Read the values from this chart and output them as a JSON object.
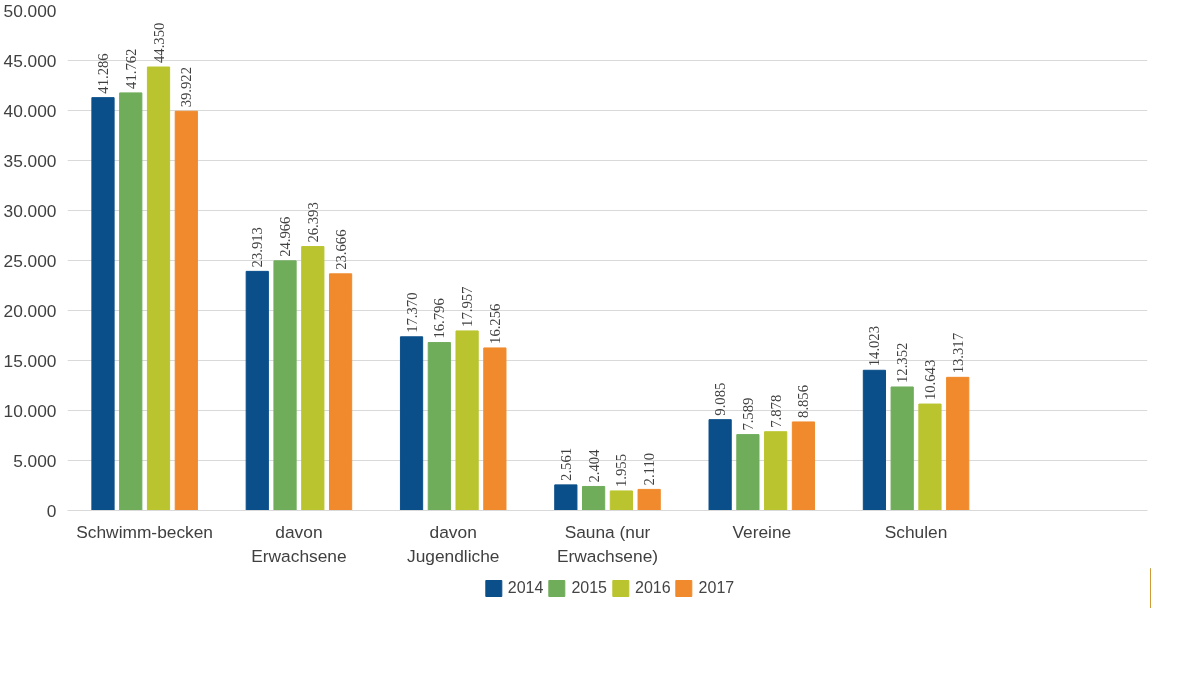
{
  "chart_data": {
    "type": "bar",
    "categories": [
      "Schwimm-becken",
      "davon Erwachsene",
      "davon Jugendliche",
      "Sauna (nur Erwachsene)",
      "Vereine",
      "Schulen",
      null
    ],
    "series": [
      {
        "name": "2014",
        "color": "#0b4f8a",
        "values": [
          41286,
          23913,
          17370,
          2561,
          9085,
          14023,
          null
        ],
        "value_labels": [
          "41.286",
          "23.913",
          "17.370",
          "2.561",
          "9.085",
          "14.023",
          null
        ]
      },
      {
        "name": "2015",
        "color": "#70ad5b",
        "values": [
          41762,
          24966,
          16796,
          2404,
          7589,
          12352,
          null
        ],
        "value_labels": [
          "41.762",
          "24.966",
          "16.796",
          "2.404",
          "7.589",
          "12.352",
          null
        ]
      },
      {
        "name": "2016",
        "color": "#bac42e",
        "values": [
          44350,
          26393,
          17957,
          1955,
          7878,
          10643,
          null
        ],
        "value_labels": [
          "44.350",
          "26.393",
          "17.957",
          "1.955",
          "7.878",
          "10.643",
          null
        ]
      },
      {
        "name": "2017",
        "color": "#f08a2c",
        "values": [
          39922,
          23666,
          16256,
          2110,
          8856,
          13317,
          null
        ],
        "value_labels": [
          "39.922",
          "23.666",
          "16.256",
          "2.110",
          "8.856",
          "13.317",
          null
        ]
      }
    ],
    "ylim": [
      0,
      50000
    ],
    "yticks": [
      {
        "value": 0,
        "label": "0"
      },
      {
        "value": 5000,
        "label": "5.000"
      },
      {
        "value": 10000,
        "label": "10.000"
      },
      {
        "value": 15000,
        "label": "15.000"
      },
      {
        "value": 20000,
        "label": "20.000"
      },
      {
        "value": 25000,
        "label": "25.000"
      },
      {
        "value": 30000,
        "label": "30.000"
      },
      {
        "value": 35000,
        "label": "35.000"
      },
      {
        "value": 40000,
        "label": "40.000"
      },
      {
        "value": 45000,
        "label": "45.000"
      },
      {
        "value": 50000,
        "label": "50.000"
      }
    ],
    "grid": "y",
    "legend": "bottom"
  }
}
